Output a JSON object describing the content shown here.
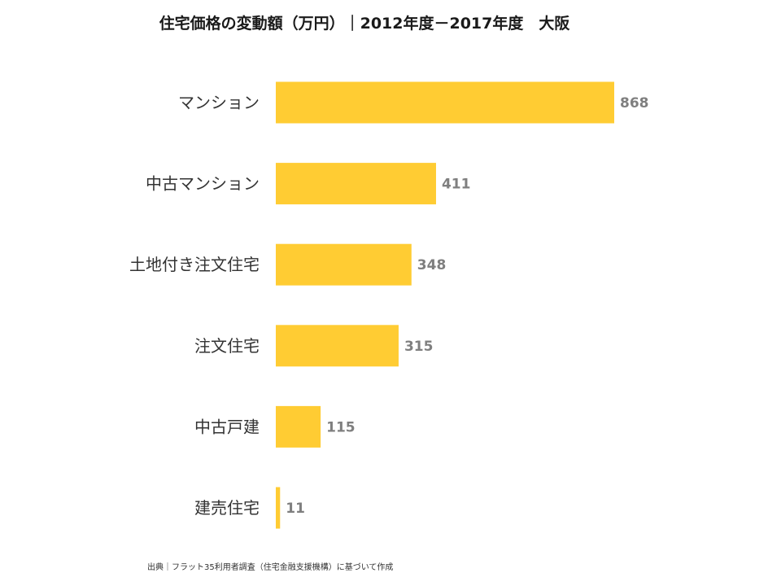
{
  "chart_data": {
    "type": "bar",
    "orientation": "horizontal",
    "title": "住宅価格の変動額（万円）｜2012年度－2017年度　大阪",
    "categories": [
      "マンション",
      "中古マンション",
      "土地付き注文住宅",
      "注文住宅",
      "中古戸建",
      "建売住宅"
    ],
    "values": [
      868,
      411,
      348,
      315,
      115,
      11
    ],
    "value_labels": [
      "868",
      "411",
      "348",
      "315",
      "115",
      "11"
    ],
    "bar_color": "#FFCC33",
    "value_label_color": "#7F7F7F",
    "xlim": [
      0,
      868
    ],
    "grid": false,
    "axis_visible": false,
    "legend": "none"
  },
  "source_note": "出典｜フラット35利用者調査（住宅金融支援機構）に基づいて作成"
}
